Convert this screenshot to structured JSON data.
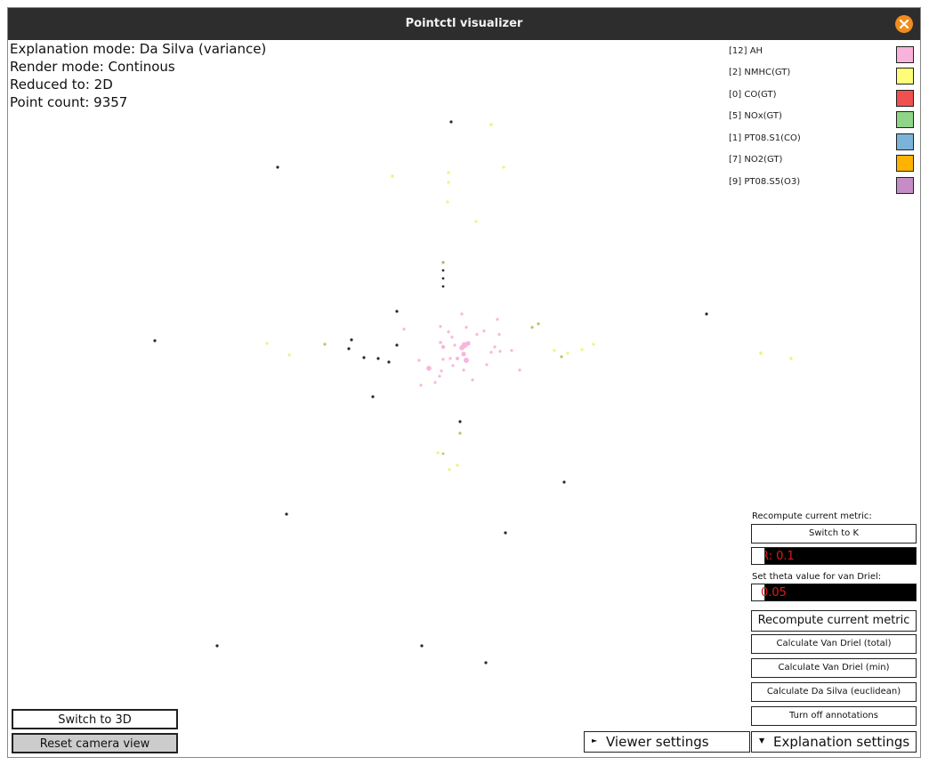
{
  "window": {
    "title": "Pointctl visualizer",
    "close_icon": "close-icon"
  },
  "info": {
    "explanation_mode": "Explanation mode: Da Silva (variance)",
    "render_mode": "Render mode: Continous",
    "reduced_to": "Reduced to: 2D",
    "point_count": "Point count: 9357"
  },
  "legend": [
    {
      "label": "[12] AH",
      "color": "#f7b3dc"
    },
    {
      "label": "[2] NMHC(GT)",
      "color": "#fdfd7a"
    },
    {
      "label": "[0] CO(GT)",
      "color": "#f05050"
    },
    {
      "label": "[5] NOx(GT)",
      "color": "#90d488"
    },
    {
      "label": "[1] PT08.S1(CO)",
      "color": "#7cb3d9"
    },
    {
      "label": "[7] NO2(GT)",
      "color": "#fdb300"
    },
    {
      "label": "[9] PT08.S5(O3)",
      "color": "#c58cc6"
    }
  ],
  "controls": {
    "recompute_label": "Recompute current metric:",
    "switch_to_k": "Switch to K",
    "r_value": "R: 0.1",
    "theta_label": "Set theta value for van Driel:",
    "theta_value": "0.05",
    "recompute_button": "Recompute current metric",
    "van_driel_total": "Calculate Van Driel (total)",
    "van_driel_min": "Calculate Van Driel (min)",
    "da_silva": "Calculate Da Silva (euclidean)",
    "annotations": "Turn off annotations",
    "switch_3d": "Switch to 3D",
    "reset_camera": "Reset camera view",
    "viewer_settings": "Viewer settings",
    "explanation_settings": "Explanation settings"
  },
  "scatter": {
    "colors": {
      "black": "#2a2a2a",
      "pink": "#f9b5db",
      "yellow": "#f2f27a",
      "olive": "#bcc26a"
    }
  }
}
